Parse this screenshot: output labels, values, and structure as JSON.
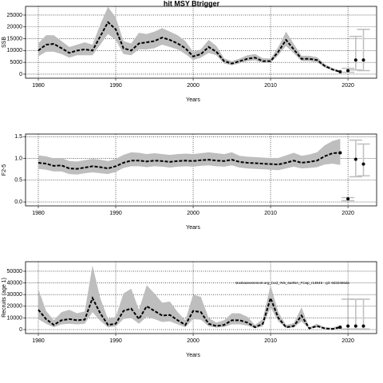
{
  "chart_data": [
    {
      "type": "line",
      "title": "hit MSY Btrigger",
      "ylabel": "SSB",
      "xlabel": "Years",
      "x": [
        1980,
        1981,
        1982,
        1983,
        1984,
        1985,
        1986,
        1987,
        1988,
        1989,
        1990,
        1991,
        1992,
        1993,
        1994,
        1995,
        1996,
        1997,
        1998,
        1999,
        2000,
        2001,
        2002,
        2003,
        2004,
        2005,
        2006,
        2007,
        2008,
        2009,
        2010,
        2011,
        2012,
        2013,
        2014,
        2015,
        2016,
        2017,
        2018,
        2019
      ],
      "values": [
        10000,
        12500,
        12800,
        11000,
        9000,
        10000,
        10500,
        10000,
        16000,
        22000,
        19000,
        11000,
        10000,
        13000,
        13500,
        14000,
        15500,
        14500,
        13000,
        11000,
        7500,
        8500,
        11500,
        9500,
        5500,
        4500,
        5500,
        6500,
        7000,
        5500,
        5500,
        9500,
        14500,
        10500,
        6500,
        6500,
        6000,
        3500,
        2000,
        1000
      ],
      "band_lower": [
        7500,
        9500,
        9500,
        8500,
        7000,
        8000,
        8000,
        8000,
        12500,
        17000,
        14500,
        8500,
        8000,
        10500,
        10500,
        11000,
        12500,
        11500,
        10500,
        8500,
        6000,
        7000,
        9000,
        8000,
        4500,
        3800,
        4600,
        5500,
        5800,
        4700,
        4800,
        8000,
        12000,
        8800,
        5500,
        5500,
        5000,
        2800,
        1500,
        600
      ],
      "band_upper": [
        13000,
        16500,
        16500,
        14000,
        11500,
        12500,
        13500,
        12500,
        21000,
        28500,
        24000,
        14000,
        13000,
        17500,
        17000,
        18000,
        19500,
        18000,
        16500,
        14000,
        9500,
        10500,
        14500,
        12000,
        6700,
        5500,
        6600,
        8000,
        8500,
        6800,
        6600,
        11500,
        18000,
        12800,
        7800,
        7800,
        7200,
        4300,
        2600,
        1500
      ],
      "projection": {
        "x": [
          2020,
          2021,
          2022
        ],
        "values": [
          1500,
          6000,
          6000
        ],
        "lower": [
          800,
          1800,
          1500
        ],
        "upper": [
          2500,
          16000,
          19000
        ]
      },
      "xlim": [
        1978.35,
        2023.7
      ],
      "ylim": [
        -1700,
        28700
      ],
      "xticks": [
        1980,
        1990,
        2000,
        2010,
        2020
      ],
      "yticks": [
        0,
        5000,
        10000,
        15000,
        20000,
        25000
      ],
      "grid": true,
      "color": "#000000",
      "band_color": "#bebebe",
      "projection_color": "#bebebe"
    },
    {
      "type": "line",
      "ylabel": "F2-5",
      "xlabel": "Years",
      "x": [
        1980,
        1981,
        1982,
        1983,
        1984,
        1985,
        1986,
        1987,
        1988,
        1989,
        1990,
        1991,
        1992,
        1993,
        1994,
        1995,
        1996,
        1997,
        1998,
        1999,
        2000,
        2001,
        2002,
        2003,
        2004,
        2005,
        2006,
        2007,
        2008,
        2009,
        2010,
        2011,
        2012,
        2013,
        2014,
        2015,
        2016,
        2017,
        2018,
        2019
      ],
      "values": [
        0.9,
        0.88,
        0.83,
        0.84,
        0.77,
        0.76,
        0.79,
        0.82,
        0.8,
        0.77,
        0.82,
        0.9,
        0.95,
        0.95,
        0.93,
        0.95,
        0.94,
        0.92,
        0.94,
        0.95,
        0.94,
        0.96,
        0.97,
        0.95,
        0.94,
        0.97,
        0.92,
        0.9,
        0.89,
        0.88,
        0.87,
        0.86,
        0.9,
        0.95,
        0.9,
        0.92,
        0.95,
        1.05,
        1.12,
        1.13
      ],
      "band_lower": [
        0.76,
        0.74,
        0.7,
        0.7,
        0.64,
        0.63,
        0.66,
        0.68,
        0.66,
        0.64,
        0.69,
        0.78,
        0.82,
        0.82,
        0.8,
        0.82,
        0.81,
        0.79,
        0.81,
        0.82,
        0.81,
        0.83,
        0.84,
        0.82,
        0.81,
        0.84,
        0.79,
        0.77,
        0.76,
        0.75,
        0.74,
        0.73,
        0.77,
        0.81,
        0.77,
        0.78,
        0.8,
        0.86,
        0.88,
        0.85
      ],
      "band_upper": [
        1.07,
        1.05,
        1,
        1.01,
        0.94,
        0.93,
        0.96,
        0.99,
        0.97,
        0.94,
        0.99,
        1.08,
        1.14,
        1.13,
        1.1,
        1.12,
        1.1,
        1.08,
        1.1,
        1.11,
        1.1,
        1.12,
        1.14,
        1.12,
        1.1,
        1.14,
        1.06,
        1.04,
        1.03,
        1.02,
        1.01,
        1.01,
        1.07,
        1.13,
        1.06,
        1.09,
        1.14,
        1.3,
        1.4,
        1.45
      ],
      "projection": {
        "x": [
          2020,
          2021,
          2022
        ],
        "values": [
          0.07,
          0.98,
          0.87
        ],
        "lower": [
          0.03,
          0.58,
          0.6
        ],
        "upper": [
          0.1,
          1.42,
          1.33
        ]
      },
      "xlim": [
        1978.35,
        2023.7
      ],
      "ylim": [
        -0.09,
        1.56
      ],
      "xticks": [
        1980,
        1990,
        2000,
        2010,
        2020
      ],
      "yticks": [
        {
          "value": 0,
          "label": "0.0"
        },
        {
          "value": 0.5,
          "label": "0.5"
        },
        {
          "value": 1,
          "label": "1.0"
        },
        {
          "value": 1.5,
          "label": "1.5"
        }
      ],
      "grid": true,
      "color": "#000000",
      "band_color": "#bebebe",
      "projection_color": "#bebebe"
    },
    {
      "type": "line",
      "ylabel": "Recruits (age 1)",
      "xlabel": "Years",
      "annotation": "stockassessment.org_Cod_7ek_4a3NA_FCap_r13045 - git: 9d33465da",
      "x": [
        1980,
        1981,
        1982,
        1983,
        1984,
        1985,
        1986,
        1987,
        1988,
        1989,
        1990,
        1991,
        1992,
        1993,
        1994,
        1995,
        1996,
        1997,
        1998,
        1999,
        2000,
        2001,
        2002,
        2003,
        2004,
        2005,
        2006,
        2007,
        2008,
        2009,
        2010,
        2011,
        2012,
        2013,
        2014,
        2015,
        2016,
        2017,
        2018,
        2019
      ],
      "values": [
        17000,
        9000,
        4000,
        8000,
        9000,
        8000,
        8500,
        27000,
        14000,
        4000,
        5000,
        16000,
        18000,
        9000,
        20000,
        16000,
        12000,
        12500,
        8000,
        4000,
        16000,
        15000,
        5000,
        3000,
        4000,
        8000,
        8000,
        6000,
        2000,
        5000,
        27000,
        10000,
        2000,
        3000,
        12000,
        1000,
        3000,
        1000,
        500,
        2000
      ],
      "band_lower": [
        9000,
        5000,
        2000,
        4500,
        5000,
        4500,
        5000,
        15000,
        7500,
        2000,
        2700,
        9000,
        10000,
        5000,
        11000,
        9000,
        6500,
        7000,
        4500,
        2000,
        9000,
        8500,
        2800,
        1700,
        2200,
        4500,
        4500,
        3400,
        1100,
        2800,
        19000,
        7000,
        1200,
        1800,
        7000,
        500,
        1800,
        500,
        200,
        800
      ],
      "band_upper": [
        35000,
        16000,
        8000,
        15000,
        17000,
        14000,
        15500,
        55000,
        27000,
        9000,
        11000,
        31000,
        35000,
        17000,
        38000,
        31000,
        23000,
        24000,
        15000,
        8000,
        30000,
        28000,
        10000,
        6000,
        8000,
        14000,
        14000,
        11000,
        4000,
        9000,
        38000,
        15000,
        4000,
        5500,
        19000,
        2000,
        5000,
        2000,
        1500,
        4000
      ],
      "projection": {
        "x": [
          2020,
          2021,
          2022
        ],
        "values": [
          3000,
          3000,
          3000
        ],
        "lower": [
          500,
          500,
          500
        ],
        "upper": [
          26000,
          26000,
          26000
        ]
      },
      "xlim": [
        1978.35,
        2023.7
      ],
      "ylim": [
        -3400,
        58200
      ],
      "xticks": [
        1980,
        1990,
        2000,
        2010,
        2020
      ],
      "yticks": [
        0,
        10000,
        20000,
        30000,
        40000,
        50000
      ],
      "grid": true,
      "color": "#000000",
      "band_color": "#bebebe",
      "projection_color": "#bebebe"
    }
  ]
}
